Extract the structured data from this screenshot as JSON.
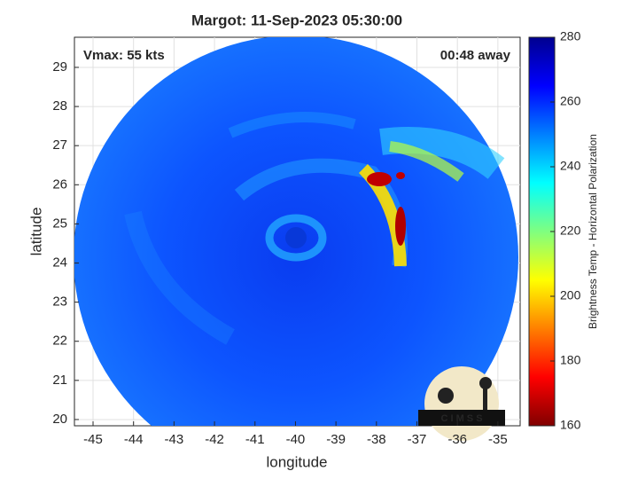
{
  "chart_data": {
    "type": "image",
    "title": "Margot: 11-Sep-2023 05:30:00",
    "xlabel": "longitude",
    "ylabel": "latitude",
    "xlim": [
      -45.46,
      -34.45
    ],
    "ylim": [
      19.84,
      29.77
    ],
    "xticks": [
      -45,
      -44,
      -43,
      -42,
      -41,
      -40,
      -39,
      -38,
      -37,
      -36,
      -35
    ],
    "yticks": [
      20,
      21,
      22,
      23,
      24,
      25,
      26,
      27,
      28,
      29
    ],
    "grid": true,
    "annotations": [
      "Vmax: 55 kts",
      "00:48 away"
    ],
    "logo": "C I M S S",
    "colorbar": {
      "label": "Brightness Temp - Horizontal Polarization",
      "colormap": "jet",
      "lim": [
        160,
        280
      ],
      "ticks": [
        160,
        180,
        200,
        220,
        240,
        260,
        280
      ]
    }
  }
}
